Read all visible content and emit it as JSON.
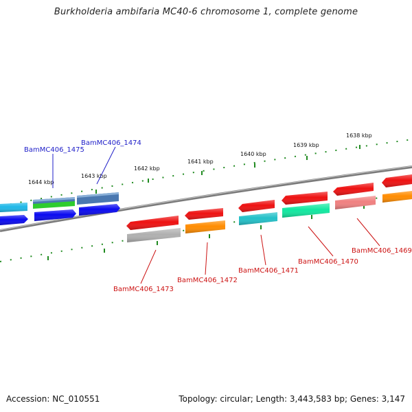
{
  "title": "Burkholderia ambifaria MC40-6 chromosome 1, complete genome",
  "footer": {
    "accession": "Accession: NC_010551",
    "summary": "Topology: circular; Length: 3,443,583 bp; Genes: 3,147"
  },
  "scale_ticks": [
    "1638 kbp",
    "1639 kbp",
    "1640 kbp",
    "1641 kbp",
    "1642 kbp",
    "1643 kbp",
    "1644 kbp"
  ],
  "genes_forward": [
    {
      "label": "BamMC406_1475",
      "color": "#1d1dc8"
    },
    {
      "label": "BamMC406_1474",
      "color": "#1d1dc8"
    }
  ],
  "genes_reverse": [
    {
      "label": "BamMC406_1473",
      "color": "#cc1111"
    },
    {
      "label": "BamMC406_1472",
      "color": "#cc1111"
    },
    {
      "label": "BamMC406_1471",
      "color": "#cc1111"
    },
    {
      "label": "BamMC406_1470",
      "color": "#cc1111"
    },
    {
      "label": "BamMC406_1469",
      "color": "#cc1111"
    }
  ],
  "colors": {
    "backbone": "#7a7a7a",
    "tick": "#1f8a1f",
    "red": "#ee1111",
    "blue": "#0a0af0",
    "cyan": "#1fb8e8",
    "steel": "#4a78b0",
    "green": "#2ecc2e",
    "orange": "#ff8c00",
    "teal": "#22c0c8",
    "mint": "#11e8a0",
    "pink": "#f08080",
    "gray": "#b0b0b0"
  }
}
